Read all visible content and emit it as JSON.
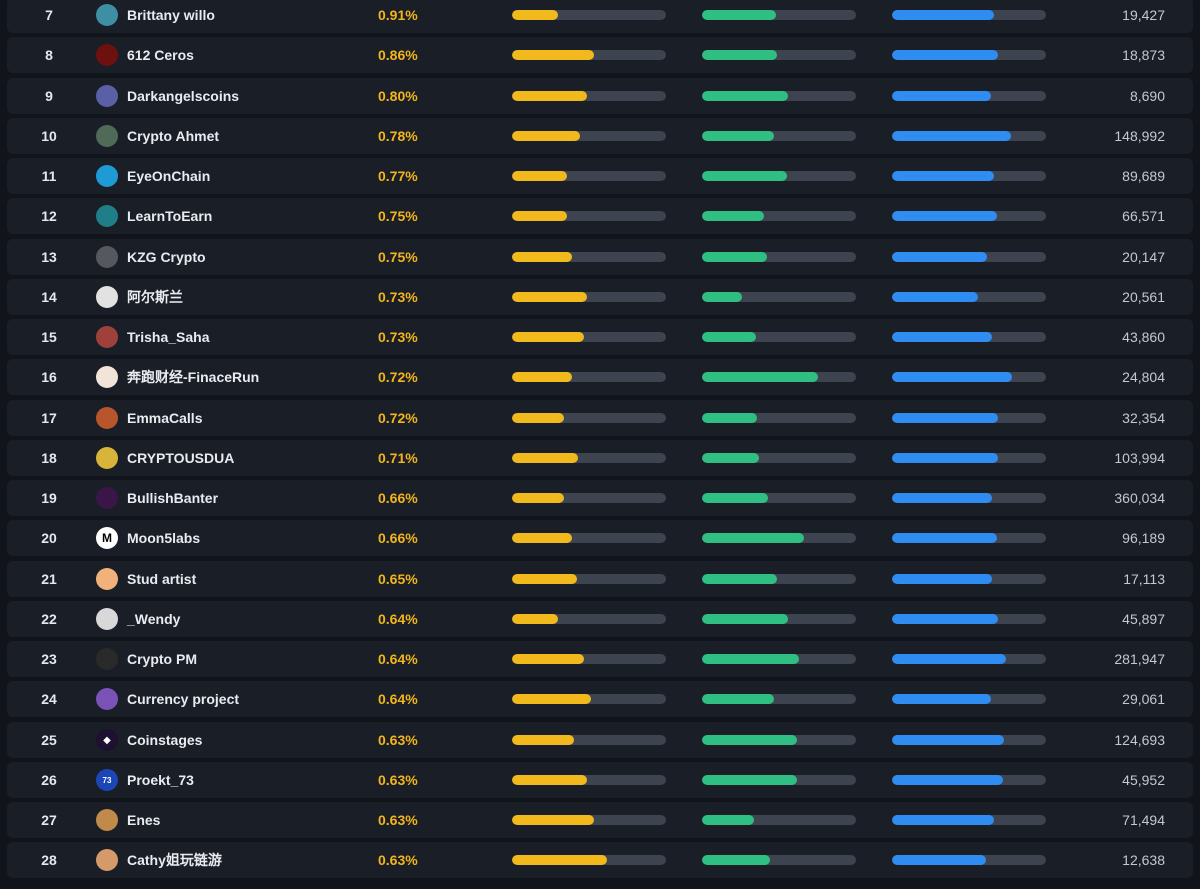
{
  "colors": {
    "background": "#11141b",
    "row": "#1a1e26",
    "percent_text": "#f3b51c",
    "bar_track": "#3d434f",
    "bar_yellow": "#f2b91c",
    "bar_green": "#2fbf83",
    "bar_blue": "#2f8cf0"
  },
  "rows": [
    {
      "rank": "7",
      "name": "Brittany willo",
      "percent": "0.91%",
      "avatar_icon": "creator-avatar-icon",
      "avatar_color": "#3d8fa3",
      "avatar_text": "",
      "bar_yellow": 0.3,
      "bar_green": 0.48,
      "bar_blue": 0.66,
      "followers": "19,427"
    },
    {
      "rank": "8",
      "name": "612 Ceros",
      "percent": "0.86%",
      "avatar_icon": "creator-avatar-icon",
      "avatar_color": "#6e1010",
      "avatar_text": "",
      "bar_yellow": 0.53,
      "bar_green": 0.49,
      "bar_blue": 0.69,
      "followers": "18,873"
    },
    {
      "rank": "9",
      "name": "Darkangelscoins",
      "percent": "0.80%",
      "avatar_icon": "creator-avatar-icon",
      "avatar_color": "#5b5fa8",
      "avatar_text": "",
      "bar_yellow": 0.49,
      "bar_green": 0.56,
      "bar_blue": 0.64,
      "followers": "8,690"
    },
    {
      "rank": "10",
      "name": "Crypto Ahmet",
      "percent": "0.78%",
      "avatar_icon": "creator-avatar-icon",
      "avatar_color": "#4f6b58",
      "avatar_text": "",
      "bar_yellow": 0.44,
      "bar_green": 0.47,
      "bar_blue": 0.77,
      "followers": "148,992"
    },
    {
      "rank": "11",
      "name": "EyeOnChain",
      "percent": "0.77%",
      "avatar_icon": "creator-avatar-icon",
      "avatar_color": "#1e9ad6",
      "avatar_text": "",
      "bar_yellow": 0.36,
      "bar_green": 0.55,
      "bar_blue": 0.66,
      "followers": "89,689"
    },
    {
      "rank": "12",
      "name": "LearnToEarn",
      "percent": "0.75%",
      "avatar_icon": "creator-avatar-icon",
      "avatar_color": "#1f7e88",
      "avatar_text": "",
      "bar_yellow": 0.36,
      "bar_green": 0.4,
      "bar_blue": 0.68,
      "followers": "66,571"
    },
    {
      "rank": "13",
      "name": "KZG Crypto",
      "percent": "0.75%",
      "avatar_icon": "creator-avatar-icon",
      "avatar_color": "#55585e",
      "avatar_text": "",
      "bar_yellow": 0.39,
      "bar_green": 0.42,
      "bar_blue": 0.62,
      "followers": "20,147"
    },
    {
      "rank": "14",
      "name": "阿尔斯兰",
      "percent": "0.73%",
      "avatar_icon": "creator-avatar-icon",
      "avatar_color": "#e2e2e2",
      "avatar_text": "",
      "bar_yellow": 0.49,
      "bar_green": 0.26,
      "bar_blue": 0.56,
      "followers": "20,561"
    },
    {
      "rank": "15",
      "name": "Trisha_Saha",
      "percent": "0.73%",
      "avatar_icon": "creator-avatar-icon",
      "avatar_color": "#a0403a",
      "avatar_text": "",
      "bar_yellow": 0.47,
      "bar_green": 0.35,
      "bar_blue": 0.65,
      "followers": "43,860"
    },
    {
      "rank": "16",
      "name": "奔跑财经-FinaceRun",
      "percent": "0.72%",
      "avatar_icon": "creator-avatar-icon",
      "avatar_color": "#f2e4d8",
      "avatar_text": "",
      "bar_yellow": 0.39,
      "bar_green": 0.75,
      "bar_blue": 0.78,
      "followers": "24,804"
    },
    {
      "rank": "17",
      "name": "EmmaCalls",
      "percent": "0.72%",
      "avatar_icon": "creator-avatar-icon",
      "avatar_color": "#b8552b",
      "avatar_text": "",
      "bar_yellow": 0.34,
      "bar_green": 0.36,
      "bar_blue": 0.69,
      "followers": "32,354"
    },
    {
      "rank": "18",
      "name": "CRYPTOUSDUA",
      "percent": "0.71%",
      "avatar_icon": "creator-avatar-icon",
      "avatar_color": "#d9b43a",
      "avatar_text": "",
      "bar_yellow": 0.43,
      "bar_green": 0.37,
      "bar_blue": 0.69,
      "followers": "103,994"
    },
    {
      "rank": "19",
      "name": "BullishBanter",
      "percent": "0.66%",
      "avatar_icon": "creator-avatar-icon",
      "avatar_color": "#3a1648",
      "avatar_text": "",
      "bar_yellow": 0.34,
      "bar_green": 0.43,
      "bar_blue": 0.65,
      "followers": "360,034"
    },
    {
      "rank": "20",
      "name": "Moon5labs",
      "percent": "0.66%",
      "avatar_icon": "moon5labs-logo-icon",
      "avatar_color": "#ffffff",
      "avatar_text": "M",
      "bar_yellow": 0.39,
      "bar_green": 0.66,
      "bar_blue": 0.68,
      "followers": "96,189"
    },
    {
      "rank": "21",
      "name": "Stud artist",
      "percent": "0.65%",
      "avatar_icon": "creator-avatar-icon",
      "avatar_color": "#f0b27a",
      "avatar_text": "",
      "bar_yellow": 0.42,
      "bar_green": 0.49,
      "bar_blue": 0.65,
      "followers": "17,113"
    },
    {
      "rank": "22",
      "name": "_Wendy",
      "percent": "0.64%",
      "avatar_icon": "creator-avatar-icon",
      "avatar_color": "#d8d8d8",
      "avatar_text": "",
      "bar_yellow": 0.3,
      "bar_green": 0.56,
      "bar_blue": 0.69,
      "followers": "45,897"
    },
    {
      "rank": "23",
      "name": "Crypto PM",
      "percent": "0.64%",
      "avatar_icon": "creator-avatar-icon",
      "avatar_color": "#2a2a2a",
      "avatar_text": "",
      "bar_yellow": 0.47,
      "bar_green": 0.63,
      "bar_blue": 0.74,
      "followers": "281,947"
    },
    {
      "rank": "24",
      "name": "Currency project",
      "percent": "0.64%",
      "avatar_icon": "creator-avatar-icon",
      "avatar_color": "#7a52b8",
      "avatar_text": "",
      "bar_yellow": 0.51,
      "bar_green": 0.47,
      "bar_blue": 0.64,
      "followers": "29,061"
    },
    {
      "rank": "25",
      "name": "Coinstages",
      "percent": "0.63%",
      "avatar_icon": "coinstages-logo-icon",
      "avatar_color": "#1d1030",
      "avatar_text": "◆",
      "bar_yellow": 0.4,
      "bar_green": 0.62,
      "bar_blue": 0.73,
      "followers": "124,693"
    },
    {
      "rank": "26",
      "name": "Proekt_73",
      "percent": "0.63%",
      "avatar_icon": "proekt73-logo-icon",
      "avatar_color": "#1a46b8",
      "avatar_text": "73",
      "bar_yellow": 0.49,
      "bar_green": 0.62,
      "bar_blue": 0.72,
      "followers": "45,952"
    },
    {
      "rank": "27",
      "name": "Enes",
      "percent": "0.63%",
      "avatar_icon": "creator-avatar-icon",
      "avatar_color": "#c08a4a",
      "avatar_text": "",
      "bar_yellow": 0.53,
      "bar_green": 0.34,
      "bar_blue": 0.66,
      "followers": "71,494"
    },
    {
      "rank": "28",
      "name": "Cathy姐玩链游",
      "percent": "0.63%",
      "avatar_icon": "creator-avatar-icon",
      "avatar_color": "#d49a6a",
      "avatar_text": "",
      "bar_yellow": 0.62,
      "bar_green": 0.44,
      "bar_blue": 0.61,
      "followers": "12,638"
    }
  ]
}
